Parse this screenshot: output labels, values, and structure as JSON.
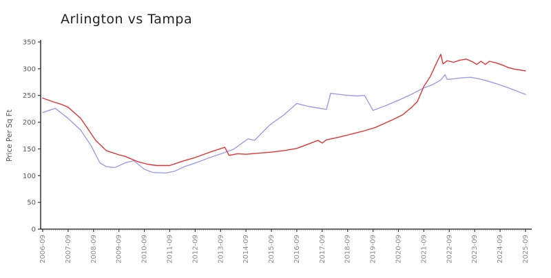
{
  "title": "Arlington vs Tampa",
  "chart_data": {
    "type": "line",
    "title": "Arlington vs Tampa",
    "xlabel": "",
    "ylabel": "Price Per Sq Ft",
    "ylim": [
      0,
      350
    ],
    "y_ticks": [
      0,
      50,
      100,
      150,
      200,
      250,
      300,
      350
    ],
    "x_tick_labels": [
      "2006-09",
      "2007-09",
      "2008-09",
      "2009-09",
      "2010-09",
      "2011-09",
      "2012-09",
      "2013-09",
      "2014-09",
      "2015-09",
      "2016-09",
      "2017-09",
      "2018-09",
      "2019-09",
      "2020-09",
      "2021-09",
      "2022-09",
      "2023-09",
      "2024-09",
      "2025-09"
    ],
    "x_minor_tick_unit": "month",
    "grid": false,
    "legend_position": "none",
    "series": [
      {
        "name": "Arlington",
        "color": "#9a9af0",
        "points": [
          [
            "2006-09",
            218
          ],
          [
            "2007-03",
            226
          ],
          [
            "2007-09",
            207
          ],
          [
            "2008-03",
            185
          ],
          [
            "2008-08",
            155
          ],
          [
            "2008-12",
            124
          ],
          [
            "2009-03",
            117
          ],
          [
            "2009-07",
            115
          ],
          [
            "2009-12",
            124
          ],
          [
            "2010-04",
            128
          ],
          [
            "2010-09",
            112
          ],
          [
            "2011-01",
            106
          ],
          [
            "2011-07",
            105
          ],
          [
            "2011-11",
            108
          ],
          [
            "2012-04",
            117
          ],
          [
            "2012-10",
            125
          ],
          [
            "2013-04",
            134
          ],
          [
            "2013-10",
            142
          ],
          [
            "2014-03",
            149
          ],
          [
            "2014-10",
            169
          ],
          [
            "2015-01",
            166
          ],
          [
            "2015-08",
            194
          ],
          [
            "2016-03",
            214
          ],
          [
            "2016-09",
            235
          ],
          [
            "2017-03",
            229
          ],
          [
            "2017-11",
            224
          ],
          [
            "2018-01",
            254
          ],
          [
            "2018-07",
            251
          ],
          [
            "2019-01",
            249
          ],
          [
            "2019-05",
            250
          ],
          [
            "2019-09",
            222
          ],
          [
            "2020-03",
            231
          ],
          [
            "2020-09",
            241
          ],
          [
            "2021-03",
            252
          ],
          [
            "2021-09",
            264
          ],
          [
            "2022-01",
            270
          ],
          [
            "2022-05",
            279
          ],
          [
            "2022-07",
            289
          ],
          [
            "2022-08",
            280
          ],
          [
            "2022-11",
            281
          ],
          [
            "2023-03",
            283
          ],
          [
            "2023-07",
            284
          ],
          [
            "2023-11",
            281
          ],
          [
            "2024-03",
            277
          ],
          [
            "2024-08",
            271
          ],
          [
            "2025-01",
            264
          ],
          [
            "2025-05",
            258
          ],
          [
            "2025-09",
            252
          ]
        ]
      },
      {
        "name": "Tampa",
        "color": "#e83030",
        "points": [
          [
            "2006-09",
            245
          ],
          [
            "2007-02",
            238
          ],
          [
            "2007-06",
            233
          ],
          [
            "2007-09",
            228
          ],
          [
            "2008-03",
            207
          ],
          [
            "2008-10",
            166
          ],
          [
            "2009-03",
            147
          ],
          [
            "2009-09",
            139
          ],
          [
            "2009-12",
            136
          ],
          [
            "2010-06",
            126
          ],
          [
            "2010-11",
            121
          ],
          [
            "2011-03",
            119
          ],
          [
            "2011-09",
            119
          ],
          [
            "2012-03",
            127
          ],
          [
            "2012-09",
            134
          ],
          [
            "2013-04",
            144
          ],
          [
            "2013-11",
            153
          ],
          [
            "2014-01",
            138
          ],
          [
            "2014-05",
            141
          ],
          [
            "2014-09",
            140
          ],
          [
            "2015-03",
            142
          ],
          [
            "2015-09",
            144
          ],
          [
            "2016-03",
            147
          ],
          [
            "2016-09",
            151
          ],
          [
            "2017-03",
            160
          ],
          [
            "2017-07",
            166
          ],
          [
            "2017-09",
            161
          ],
          [
            "2017-11",
            167
          ],
          [
            "2018-05",
            172
          ],
          [
            "2018-11",
            178
          ],
          [
            "2019-05",
            184
          ],
          [
            "2019-10",
            190
          ],
          [
            "2020-02",
            197
          ],
          [
            "2020-07",
            206
          ],
          [
            "2020-11",
            214
          ],
          [
            "2021-03",
            227
          ],
          [
            "2021-06",
            239
          ],
          [
            "2021-09",
            267
          ],
          [
            "2021-12",
            285
          ],
          [
            "2022-03",
            311
          ],
          [
            "2022-05",
            327
          ],
          [
            "2022-06",
            309
          ],
          [
            "2022-08",
            315
          ],
          [
            "2022-11",
            312
          ],
          [
            "2023-02",
            316
          ],
          [
            "2023-05",
            318
          ],
          [
            "2023-08",
            313
          ],
          [
            "2023-10",
            308
          ],
          [
            "2023-12",
            314
          ],
          [
            "2024-02",
            308
          ],
          [
            "2024-04",
            314
          ],
          [
            "2024-07",
            311
          ],
          [
            "2024-10",
            307
          ],
          [
            "2025-01",
            302
          ],
          [
            "2025-04",
            299
          ],
          [
            "2025-09",
            296
          ]
        ]
      }
    ]
  },
  "colors": {
    "background": "#ffffff",
    "axis": "#111111",
    "major_tick": "#333333",
    "minor_tick": "#c4c4c4",
    "x_tick_label": "#888888",
    "y_tick_label": "#555555",
    "title": "#222222"
  }
}
